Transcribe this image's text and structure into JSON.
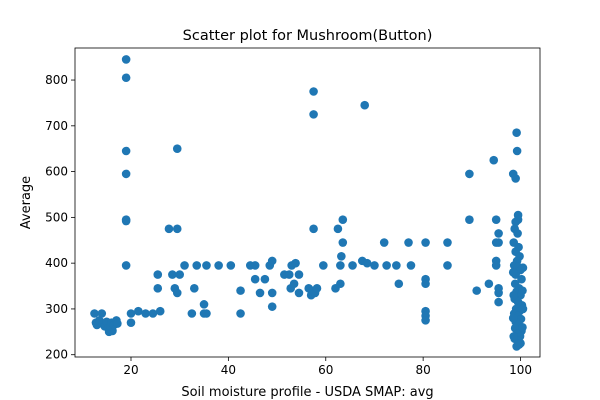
{
  "chart_data": {
    "type": "scatter",
    "title": "Scatter plot for Mushroom(Button)",
    "xlabel": "Soil moisture profile - USDA SMAP: avg",
    "ylabel": "Average",
    "xlim": [
      8.5,
      104
    ],
    "ylim": [
      195,
      870
    ],
    "xticks": [
      20,
      40,
      60,
      80,
      100
    ],
    "yticks": [
      200,
      300,
      400,
      500,
      600,
      700,
      800
    ],
    "grid": false,
    "legend": "none",
    "marker_color": "#1f77b4",
    "series": [
      {
        "points": [
          [
            12.5,
            290
          ],
          [
            12.8,
            270
          ],
          [
            13.0,
            265
          ],
          [
            13.5,
            275
          ],
          [
            14.0,
            290
          ],
          [
            14.2,
            268
          ],
          [
            14.6,
            262
          ],
          [
            15.0,
            272
          ],
          [
            15.3,
            258
          ],
          [
            15.5,
            250
          ],
          [
            15.8,
            262
          ],
          [
            16.0,
            270
          ],
          [
            16.2,
            252
          ],
          [
            16.5,
            265
          ],
          [
            17.0,
            275
          ],
          [
            17.2,
            268
          ],
          [
            19.0,
            845
          ],
          [
            19.0,
            805
          ],
          [
            19.0,
            645
          ],
          [
            19.0,
            595
          ],
          [
            19.0,
            495
          ],
          [
            19.0,
            492
          ],
          [
            19.0,
            395
          ],
          [
            20.0,
            270
          ],
          [
            20.0,
            290
          ],
          [
            21.5,
            295
          ],
          [
            23.0,
            290
          ],
          [
            24.5,
            290
          ],
          [
            25.5,
            345
          ],
          [
            25.5,
            375
          ],
          [
            26.0,
            295
          ],
          [
            27.8,
            475
          ],
          [
            28.5,
            375
          ],
          [
            29.0,
            345
          ],
          [
            29.5,
            335
          ],
          [
            29.5,
            650
          ],
          [
            29.5,
            475
          ],
          [
            30.0,
            375
          ],
          [
            31.0,
            395
          ],
          [
            32.5,
            290
          ],
          [
            33.0,
            345
          ],
          [
            33.5,
            395
          ],
          [
            35.0,
            290
          ],
          [
            35.0,
            310
          ],
          [
            35.5,
            395
          ],
          [
            35.5,
            290
          ],
          [
            38.0,
            395
          ],
          [
            40.5,
            395
          ],
          [
            42.5,
            340
          ],
          [
            42.5,
            290
          ],
          [
            44.5,
            395
          ],
          [
            45.5,
            395
          ],
          [
            45.5,
            365
          ],
          [
            46.5,
            335
          ],
          [
            47.5,
            365
          ],
          [
            48.5,
            395
          ],
          [
            49.0,
            305
          ],
          [
            49.0,
            405
          ],
          [
            49.0,
            335
          ],
          [
            51.5,
            375
          ],
          [
            52.5,
            375
          ],
          [
            52.8,
            345
          ],
          [
            53.0,
            395
          ],
          [
            53.5,
            355
          ],
          [
            53.8,
            400
          ],
          [
            54.5,
            375
          ],
          [
            54.5,
            335
          ],
          [
            56.5,
            345
          ],
          [
            57.0,
            330
          ],
          [
            57.2,
            340
          ],
          [
            57.5,
            775
          ],
          [
            57.5,
            725
          ],
          [
            57.5,
            475
          ],
          [
            57.8,
            335
          ],
          [
            58.2,
            345
          ],
          [
            59.5,
            395
          ],
          [
            62.0,
            345
          ],
          [
            62.5,
            475
          ],
          [
            63.0,
            355
          ],
          [
            63.0,
            395
          ],
          [
            63.2,
            415
          ],
          [
            63.5,
            495
          ],
          [
            63.5,
            445
          ],
          [
            65.5,
            395
          ],
          [
            67.5,
            405
          ],
          [
            68.0,
            745
          ],
          [
            68.5,
            400
          ],
          [
            70.0,
            395
          ],
          [
            72.0,
            445
          ],
          [
            72.5,
            395
          ],
          [
            74.5,
            395
          ],
          [
            75.0,
            355
          ],
          [
            77.0,
            445
          ],
          [
            77.5,
            395
          ],
          [
            80.5,
            445
          ],
          [
            80.5,
            365
          ],
          [
            80.5,
            355
          ],
          [
            80.5,
            295
          ],
          [
            80.5,
            285
          ],
          [
            80.5,
            275
          ],
          [
            85.0,
            445
          ],
          [
            85.0,
            395
          ],
          [
            89.5,
            595
          ],
          [
            89.5,
            495
          ],
          [
            91.0,
            340
          ],
          [
            93.5,
            355
          ],
          [
            94.5,
            625
          ],
          [
            95.0,
            495
          ],
          [
            95.0,
            445
          ],
          [
            95.0,
            405
          ],
          [
            95.0,
            395
          ],
          [
            95.5,
            465
          ],
          [
            95.5,
            445
          ],
          [
            95.5,
            345
          ],
          [
            95.5,
            335
          ],
          [
            95.5,
            315
          ],
          [
            98.5,
            595
          ],
          [
            99.0,
            585
          ],
          [
            99.2,
            685
          ],
          [
            99.3,
            645
          ],
          [
            99.5,
            505
          ],
          [
            99.5,
            495
          ],
          [
            99.0,
            490
          ],
          [
            98.8,
            475
          ],
          [
            99.4,
            465
          ],
          [
            98.6,
            445
          ],
          [
            99.6,
            435
          ],
          [
            99.0,
            425
          ],
          [
            99.8,
            415
          ],
          [
            99.3,
            405
          ],
          [
            98.7,
            395
          ],
          [
            99.5,
            392
          ],
          [
            100.0,
            385
          ],
          [
            99.0,
            375
          ],
          [
            100.2,
            365
          ],
          [
            98.9,
            355
          ],
          [
            99.7,
            345
          ],
          [
            99.2,
            338
          ],
          [
            100.0,
            330
          ],
          [
            98.8,
            322
          ],
          [
            99.5,
            315
          ],
          [
            100.3,
            308
          ],
          [
            99.1,
            300
          ],
          [
            99.8,
            295
          ],
          [
            98.7,
            290
          ],
          [
            99.4,
            285
          ],
          [
            100.1,
            278
          ],
          [
            99.0,
            272
          ],
          [
            99.6,
            265
          ],
          [
            98.9,
            258
          ],
          [
            100.2,
            252
          ],
          [
            99.3,
            245
          ],
          [
            99.9,
            240
          ],
          [
            98.8,
            235
          ],
          [
            99.5,
            230
          ],
          [
            100.0,
            225
          ],
          [
            99.2,
            218
          ],
          [
            99.7,
            222
          ],
          [
            100.4,
            260
          ],
          [
            100.5,
            300
          ],
          [
            100.4,
            340
          ],
          [
            100.5,
            390
          ],
          [
            98.5,
            380
          ],
          [
            98.6,
            330
          ],
          [
            98.5,
            280
          ],
          [
            98.6,
            240
          ]
        ]
      }
    ]
  }
}
